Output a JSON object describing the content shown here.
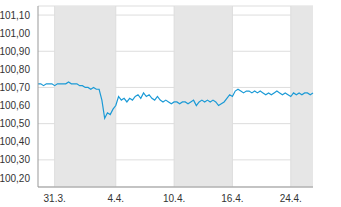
{
  "chart_data": {
    "type": "line",
    "categories": [
      null,
      null,
      null,
      null,
      null,
      null,
      "31.3.",
      null,
      null,
      null,
      null,
      null,
      null,
      null,
      null,
      null,
      null,
      null,
      null,
      null,
      null,
      null,
      null,
      null,
      null,
      null,
      null,
      null,
      "4.4.",
      null,
      null,
      null,
      null,
      null,
      null,
      null,
      null,
      null,
      null,
      null,
      null,
      null,
      null,
      null,
      null,
      null,
      null,
      null,
      null,
      "10.4.",
      null,
      null,
      null,
      null,
      null,
      null,
      null,
      null,
      null,
      null,
      null,
      null,
      null,
      null,
      null,
      null,
      null,
      null,
      null,
      null,
      "16.4.",
      null,
      null,
      null,
      null,
      null,
      null,
      null,
      null,
      null,
      null,
      null,
      null,
      null,
      null,
      null,
      null,
      null,
      null,
      null,
      null,
      "24.4.",
      null,
      null,
      null,
      null,
      null,
      null,
      null,
      null
    ],
    "values": [
      100.72,
      100.72,
      100.71,
      100.72,
      100.72,
      100.72,
      100.71,
      100.72,
      100.72,
      100.72,
      100.72,
      100.73,
      100.72,
      100.72,
      100.72,
      100.71,
      100.71,
      100.7,
      100.7,
      100.69,
      100.7,
      100.69,
      100.69,
      100.63,
      100.53,
      100.56,
      100.55,
      100.58,
      100.6,
      100.65,
      100.63,
      100.64,
      100.62,
      100.64,
      100.63,
      100.65,
      100.66,
      100.64,
      100.67,
      100.65,
      100.66,
      100.64,
      100.63,
      100.65,
      100.63,
      100.62,
      100.63,
      100.62,
      100.61,
      100.62,
      100.62,
      100.61,
      100.62,
      100.62,
      100.61,
      100.62,
      100.63,
      100.6,
      100.62,
      100.63,
      100.62,
      100.63,
      100.62,
      100.63,
      100.62,
      100.6,
      100.61,
      100.62,
      100.64,
      100.66,
      100.65,
      100.68,
      100.69,
      100.68,
      100.67,
      100.68,
      100.68,
      100.67,
      100.68,
      100.67,
      100.68,
      100.67,
      100.66,
      100.67,
      100.66,
      100.67,
      100.68,
      100.67,
      100.66,
      100.67,
      100.66,
      100.65,
      100.67,
      100.66,
      100.67,
      100.66,
      100.67,
      100.67,
      100.66,
      100.67
    ],
    "color": "#1b9ad6",
    "ylim": [
      100.15,
      101.15
    ],
    "yticks": [
      {
        "value": 100.2,
        "label": "100,20"
      },
      {
        "value": 100.3,
        "label": "100,30"
      },
      {
        "value": 100.4,
        "label": "100,40"
      },
      {
        "value": 100.5,
        "label": "100,50"
      },
      {
        "value": 100.6,
        "label": "100,60"
      },
      {
        "value": 100.7,
        "label": "100,70"
      },
      {
        "value": 100.8,
        "label": "100,80"
      },
      {
        "value": 100.9,
        "label": "100,90"
      },
      {
        "value": 101.0,
        "label": "101,00"
      },
      {
        "value": 101.1,
        "label": "101,10"
      }
    ],
    "grid": true
  }
}
